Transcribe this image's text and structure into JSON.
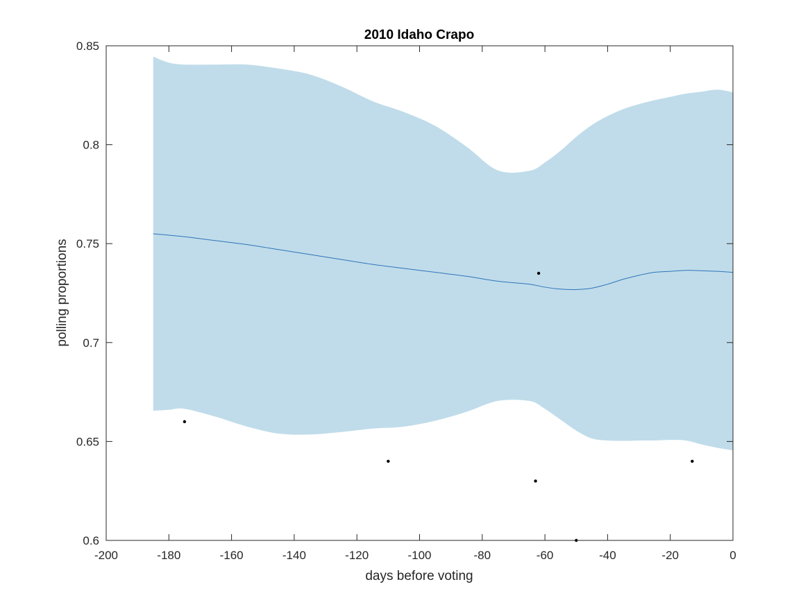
{
  "chart_data": {
    "type": "line",
    "title": "2010 Idaho Crapo",
    "xlabel": "days before voting",
    "ylabel": "polling proportions",
    "xlim": [
      -200,
      0
    ],
    "ylim": [
      0.6,
      0.85
    ],
    "xticks": [
      -200,
      -180,
      -160,
      -140,
      -120,
      -100,
      -80,
      -60,
      -40,
      -20,
      0
    ],
    "yticks": [
      0.6,
      0.65,
      0.7,
      0.75,
      0.8,
      0.85
    ],
    "xtick_labels": [
      "-200",
      "-180",
      "-160",
      "-140",
      "-120",
      "-100",
      "-80",
      "-60",
      "-40",
      "-20",
      "0"
    ],
    "ytick_labels": [
      "0.6",
      "0.65",
      "0.7",
      "0.75",
      "0.8",
      "0.85"
    ],
    "grid": false,
    "colors": {
      "band": "#c0dcea",
      "line": "#2e74b8",
      "points": "#000000",
      "axes": "#262626"
    },
    "trend": {
      "x": [
        -185,
        -175,
        -165,
        -155,
        -145,
        -135,
        -125,
        -115,
        -105,
        -95,
        -85,
        -75,
        -65,
        -60,
        -55,
        -50,
        -45,
        -40,
        -35,
        -30,
        -25,
        -20,
        -15,
        -10,
        -5,
        0
      ],
      "y": [
        0.755,
        0.7535,
        0.7515,
        0.7495,
        0.747,
        0.7445,
        0.742,
        0.7395,
        0.7375,
        0.7355,
        0.7335,
        0.731,
        0.7295,
        0.728,
        0.727,
        0.7268,
        0.7275,
        0.7295,
        0.732,
        0.734,
        0.7355,
        0.736,
        0.7365,
        0.7363,
        0.736,
        0.7355
      ]
    },
    "band": {
      "x": [
        -185,
        -180,
        -175,
        -165,
        -155,
        -145,
        -135,
        -125,
        -115,
        -105,
        -95,
        -85,
        -75,
        -65,
        -60,
        -55,
        -50,
        -45,
        -40,
        -35,
        -30,
        -25,
        -20,
        -15,
        -10,
        -5,
        0
      ],
      "upper": [
        0.8445,
        0.8415,
        0.8405,
        0.8405,
        0.8405,
        0.8385,
        0.8355,
        0.8295,
        0.822,
        0.8165,
        0.8095,
        0.799,
        0.787,
        0.7868,
        0.791,
        0.797,
        0.804,
        0.81,
        0.8145,
        0.818,
        0.8205,
        0.8225,
        0.8242,
        0.8258,
        0.8268,
        0.8278,
        0.8265
      ],
      "lower": [
        0.6655,
        0.666,
        0.6665,
        0.6625,
        0.6575,
        0.654,
        0.6535,
        0.6548,
        0.6565,
        0.6575,
        0.6605,
        0.665,
        0.6705,
        0.6705,
        0.6665,
        0.661,
        0.6555,
        0.6515,
        0.6505,
        0.6503,
        0.6505,
        0.6505,
        0.6508,
        0.6505,
        0.6485,
        0.6468,
        0.6455
      ]
    },
    "points": {
      "x": [
        -175,
        -110,
        -62,
        -63,
        -50,
        -13
      ],
      "y": [
        0.66,
        0.64,
        0.735,
        0.63,
        0.6,
        0.64
      ]
    }
  }
}
